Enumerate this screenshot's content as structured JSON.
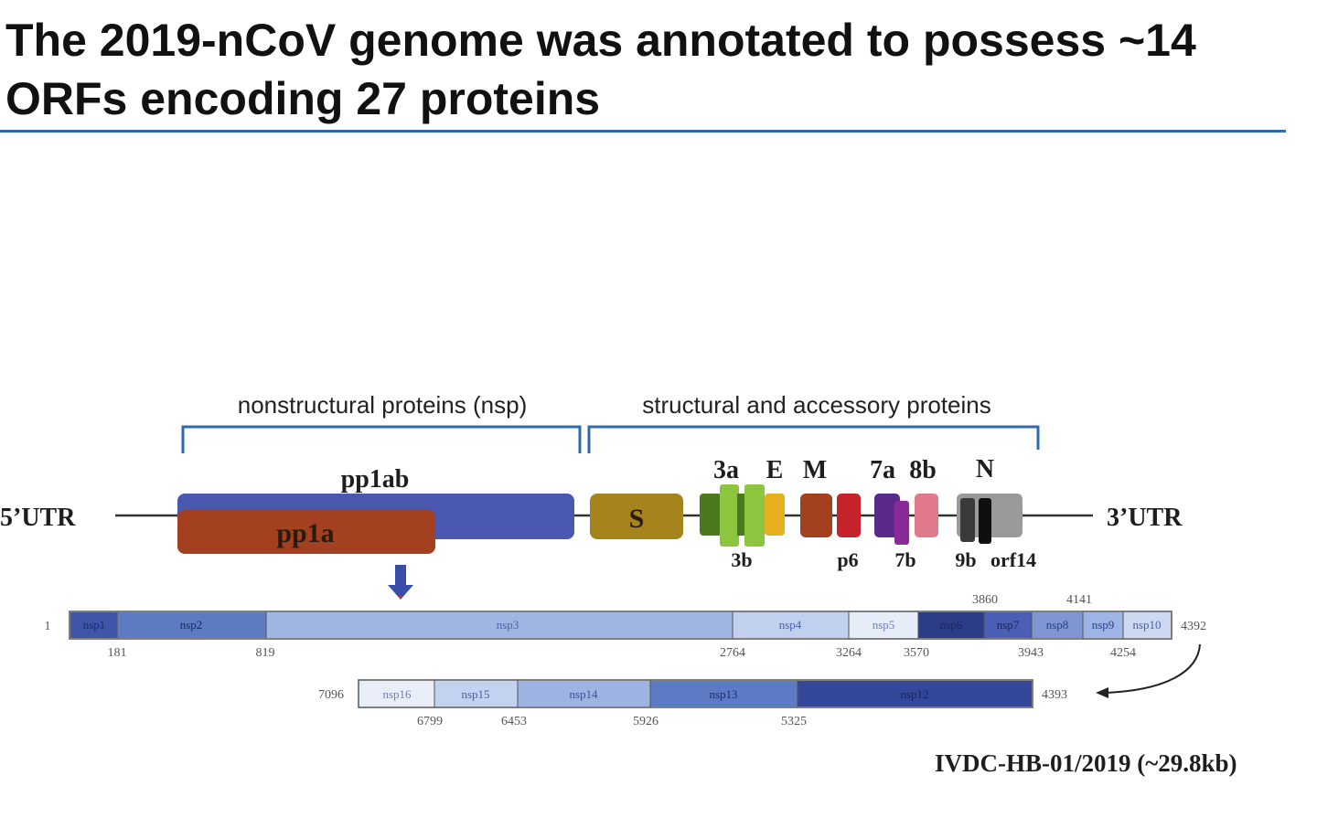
{
  "title": {
    "line1": "The 2019-nCoV genome was annotated to possess ~14",
    "line2": "ORFs encoding 27 proteins"
  },
  "brackets": {
    "nsp": "nonstructural proteins (nsp)",
    "structural": "structural and accessory proteins"
  },
  "genome": {
    "utr5": "5’UTR",
    "utr3": "3’UTR",
    "pp1ab": "pp1ab",
    "pp1a": "pp1a",
    "S": "S",
    "top_labels": {
      "3a": "3a",
      "E": "E",
      "M": "M",
      "7a": "7a",
      "8b": "8b",
      "N": "N"
    },
    "bottom_labels": {
      "3b": "3b",
      "p6": "p6",
      "7b": "7b",
      "9b": "9b",
      "orf14": "orf14"
    }
  },
  "pp1a_track": {
    "start": "1",
    "end": "4392",
    "segments": [
      "nsp1",
      "nsp2",
      "nsp3",
      "nsp4",
      "nsp5",
      "nsp6",
      "nsp7",
      "nsp8",
      "nsp9",
      "nsp10"
    ],
    "positions_below": [
      "181",
      "819",
      "2764",
      "3264",
      "3570",
      "3943",
      "4254"
    ],
    "positions_above": [
      "3860",
      "4141"
    ]
  },
  "pp1ab_track": {
    "start": "7096",
    "end": "4393",
    "segments": [
      "nsp16",
      "nsp15",
      "nsp14",
      "nsp13",
      "nsp12"
    ],
    "positions_below": [
      "6799",
      "6453",
      "5926",
      "5325"
    ]
  },
  "footnote": "IVDC-HB-01/2019  (~29.8kb)",
  "colors": {
    "accent_rule": "#2e6ab0",
    "bracket": "#2e6ab0",
    "pp1ab": "#4a58b0",
    "pp1a": "#a3401f",
    "S": "#a5841c",
    "M": "#a3401f",
    "p6": "#c6222b",
    "7a": "#5a2a8a",
    "8b": "#e07a8a",
    "N": "#9a9a9a"
  }
}
